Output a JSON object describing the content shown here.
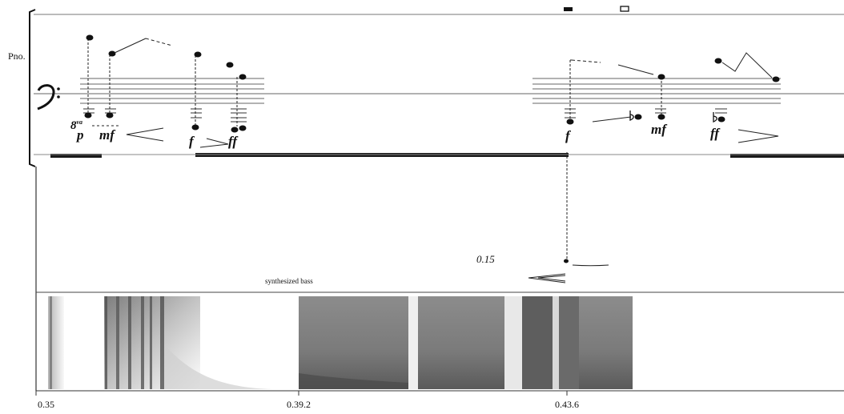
{
  "score": {
    "instrument_label": "Pno.",
    "dynamics": [
      "p",
      "mf",
      "f",
      "ff",
      "f",
      "mf",
      "ff"
    ],
    "ottava_digit": "8",
    "ottava_suffix": "va",
    "electronics": {
      "label": "synthesized bass",
      "value": "0.15"
    },
    "timeline": [
      "0.35",
      "0.39.2",
      "0.43.6"
    ],
    "colors": {
      "ink": "#111111",
      "staff": "#555555",
      "spectrogram": "#7a7a7a"
    }
  }
}
